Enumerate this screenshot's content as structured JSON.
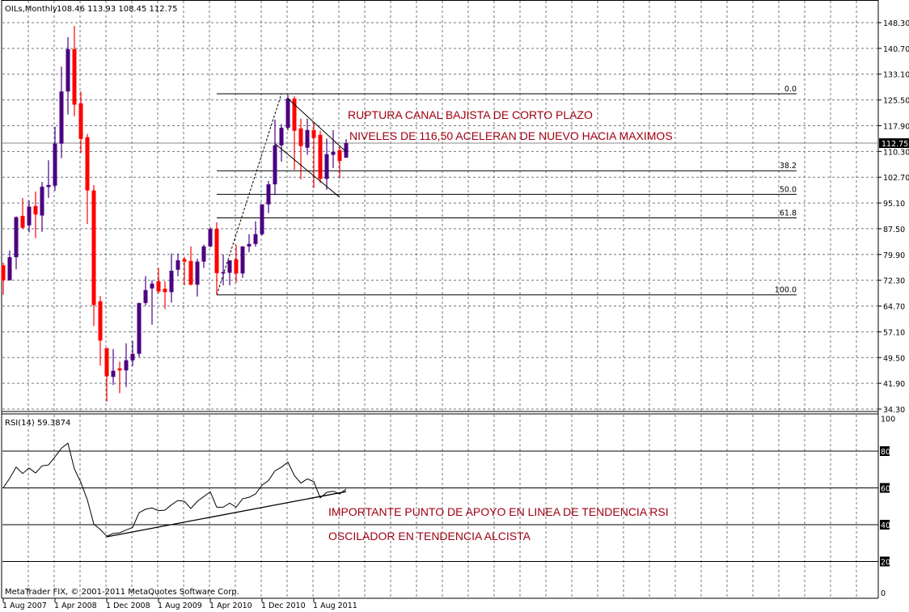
{
  "header": {
    "symbol": "OILs,Monthly",
    "ohlc_text": "108.46 113.93 108.45 112.75"
  },
  "rsi_header": "RSI(14) 59.3874",
  "copyright": "MetaTrader FIX, © 2001-2011 MetaQuotes Software Corp.",
  "current_price_label": "112.75",
  "colors": {
    "bull": "#4b0082",
    "bear": "#ff0000",
    "annotation": "#a00010",
    "grid": "#6f7782",
    "price_label_bg": "#000000"
  },
  "chart_data": [
    {
      "type": "candlestick",
      "title": "OILs,Monthly",
      "ylim": [
        34.3,
        148.3
      ],
      "y_ticks": [
        "148.30",
        "140.70",
        "133.10",
        "125.50",
        "117.90",
        "110.30",
        "102.70",
        "95.10",
        "87.50",
        "79.90",
        "72.30",
        "64.70",
        "57.10",
        "49.50",
        "41.90",
        "34.30"
      ],
      "x_ticks": [
        "1 Aug 2007",
        "1 Apr 2008",
        "1 Dec 2008",
        "1 Aug 2009",
        "1 Apr 2010",
        "1 Dec 2010",
        "1 Aug 2011"
      ],
      "grid": true,
      "dates": [
        "2007-08",
        "2007-09",
        "2007-10",
        "2007-11",
        "2007-12",
        "2008-01",
        "2008-02",
        "2008-03",
        "2008-04",
        "2008-05",
        "2008-06",
        "2008-07",
        "2008-08",
        "2008-09",
        "2008-10",
        "2008-11",
        "2008-12",
        "2009-01",
        "2009-02",
        "2009-03",
        "2009-04",
        "2009-05",
        "2009-06",
        "2009-07",
        "2009-08",
        "2009-09",
        "2009-10",
        "2009-11",
        "2009-12",
        "2010-01",
        "2010-02",
        "2010-03",
        "2010-04",
        "2010-05",
        "2010-06",
        "2010-07",
        "2010-08",
        "2010-09",
        "2010-10",
        "2010-11",
        "2010-12",
        "2011-01",
        "2011-02",
        "2011-03",
        "2011-04",
        "2011-05",
        "2011-06",
        "2011-07",
        "2011-08",
        "2011-09",
        "2011-10",
        "2011-11",
        "2011-12",
        "2012-01"
      ],
      "ohlc": [
        [
          76.7,
          77.5,
          68,
          72.3
        ],
        [
          72.3,
          81.1,
          72.3,
          79.1
        ],
        [
          79.1,
          91.2,
          75.5,
          90.9
        ],
        [
          91.3,
          96.6,
          87.5,
          87.8
        ],
        [
          88.5,
          95.8,
          86.4,
          94
        ],
        [
          94.2,
          98.5,
          84.7,
          91.7
        ],
        [
          91.4,
          101.3,
          86.6,
          99.9
        ],
        [
          99.8,
          107.7,
          96.6,
          100.4
        ],
        [
          100.2,
          117.6,
          98.7,
          112.6
        ],
        [
          112.6,
          135.3,
          108.3,
          128
        ],
        [
          128,
          144,
          121.2,
          140.5
        ],
        [
          140.5,
          147.3,
          120.7,
          124.1
        ],
        [
          124.5,
          128,
          109.9,
          114
        ],
        [
          114.5,
          115.5,
          88.9,
          98.8
        ],
        [
          98.8,
          100.4,
          58.8,
          65
        ],
        [
          66.1,
          67.7,
          47.1,
          54.5
        ],
        [
          52.3,
          52.3,
          36.5,
          44
        ],
        [
          43.8,
          52,
          41.4,
          45.6
        ],
        [
          46.3,
          48.3,
          39,
          45.7
        ],
        [
          45.7,
          53.7,
          40.8,
          48.7
        ],
        [
          48.7,
          54.4,
          47,
          50.6
        ],
        [
          50.6,
          65.6,
          49.7,
          65.6
        ],
        [
          65.6,
          73.5,
          64.9,
          69.4
        ],
        [
          69.9,
          72.3,
          59.2,
          71.3
        ],
        [
          72,
          75.9,
          68.4,
          69
        ],
        [
          69.8,
          72,
          63.8,
          68.8
        ],
        [
          68.8,
          80.2,
          65.7,
          75.1
        ],
        [
          75.4,
          80.2,
          73.5,
          78.2
        ],
        [
          78.5,
          79.2,
          70.8,
          77.8
        ],
        [
          78,
          82.3,
          70.8,
          71
        ],
        [
          71,
          78.7,
          67.5,
          77.8
        ],
        [
          77.8,
          82.8,
          75.9,
          82.3
        ],
        [
          82.3,
          88,
          82,
          87.4
        ],
        [
          87.5,
          89.4,
          68,
          74.4
        ],
        [
          74.3,
          79.9,
          70.8,
          74.7
        ],
        [
          74.5,
          78.2,
          70.8,
          78.2
        ],
        [
          78.5,
          82.8,
          71.6,
          74.3
        ],
        [
          74.3,
          82.3,
          73,
          82.3
        ],
        [
          82.3,
          85.9,
          80.6,
          83
        ],
        [
          83,
          89.7,
          82.2,
          85.9
        ],
        [
          85.9,
          94.7,
          85.5,
          94.7
        ],
        [
          94.7,
          101.6,
          92.1,
          100.6
        ],
        [
          100.6,
          119.7,
          97.4,
          112.1
        ],
        [
          112.1,
          118.4,
          107.3,
          117.3
        ],
        [
          117.3,
          127,
          116.5,
          125.9
        ],
        [
          125.9,
          126.6,
          104.9,
          116.4
        ],
        [
          117.1,
          120,
          102.1,
          111.9
        ],
        [
          111.4,
          120,
          109.3,
          116.6
        ],
        [
          116.6,
          118.8,
          99.5,
          114.3
        ],
        [
          115.2,
          116.4,
          101,
          102.2
        ],
        [
          102.2,
          114.1,
          99,
          109.5
        ],
        [
          109.3,
          116.6,
          105.4,
          110.2
        ],
        [
          110.7,
          111.7,
          102.3,
          107.5
        ],
        [
          108.46,
          113.93,
          108.45,
          112.75
        ]
      ],
      "current_price": 112.75,
      "fibonacci": {
        "from": {
          "date": "2010-05",
          "price": 68.0
        },
        "to": {
          "date": "2011-03",
          "price": 127.3
        },
        "levels": [
          {
            "label": "0.0",
            "price": 127.3
          },
          {
            "label": "38.2",
            "price": 104.6
          },
          {
            "label": "50.0",
            "price": 97.65
          },
          {
            "label": "61.8",
            "price": 90.7
          },
          {
            "label": "100.0",
            "price": 68.0
          }
        ]
      },
      "channel": {
        "upper": [
          {
            "date": "2011-04",
            "price": 125.9
          },
          {
            "date": "2012-01",
            "price": 110.2
          }
        ],
        "lower": [
          {
            "date": "2011-02",
            "price": 112.6
          },
          {
            "date": "2011-12",
            "price": 96.8
          }
        ]
      },
      "annotations": [
        "RUPTURA CANAL BAJISTA DE CORTO PLAZO",
        "NIVELES DE 116,50 ACELERAN DE NUEVO HACIA MAXIMOS"
      ]
    },
    {
      "type": "line",
      "title": "RSI(14) 59.3874",
      "ylim": [
        0,
        100
      ],
      "y_ticks": [
        "100",
        "80",
        "60",
        "40",
        "20",
        "0"
      ],
      "levels": [
        80,
        60,
        40,
        20
      ],
      "values": [
        60.1,
        65.2,
        71.3,
        67.8,
        70.8,
        68.1,
        72.0,
        72.5,
        76.9,
        81.6,
        84.3,
        70.3,
        63.0,
        53.5,
        40.3,
        37.4,
        33.7,
        35.2,
        35.6,
        37.1,
        38.5,
        46.5,
        48.4,
        49.1,
        47.6,
        47.9,
        50.8,
        53.2,
        52.7,
        48.8,
        52.7,
        55.3,
        57.9,
        49.5,
        49.5,
        51.7,
        49.5,
        54.1,
        54.9,
        56.7,
        61.5,
        64.0,
        69.3,
        71.3,
        74.0,
        66.7,
        62.6,
        64.9,
        63.4,
        54.6,
        57.6,
        58.2,
        56.7,
        59.39
      ],
      "trendline": [
        {
          "date": "2008-12",
          "value": 33.4
        },
        {
          "date": "2012-01",
          "value": 58.0
        }
      ],
      "annotations": [
        "IMPORTANTE PUNTO DE APOYO EN LINEA DE TENDENCIA RSI",
        "OSCILADOR EN TENDENCIA ALCISTA"
      ]
    }
  ]
}
